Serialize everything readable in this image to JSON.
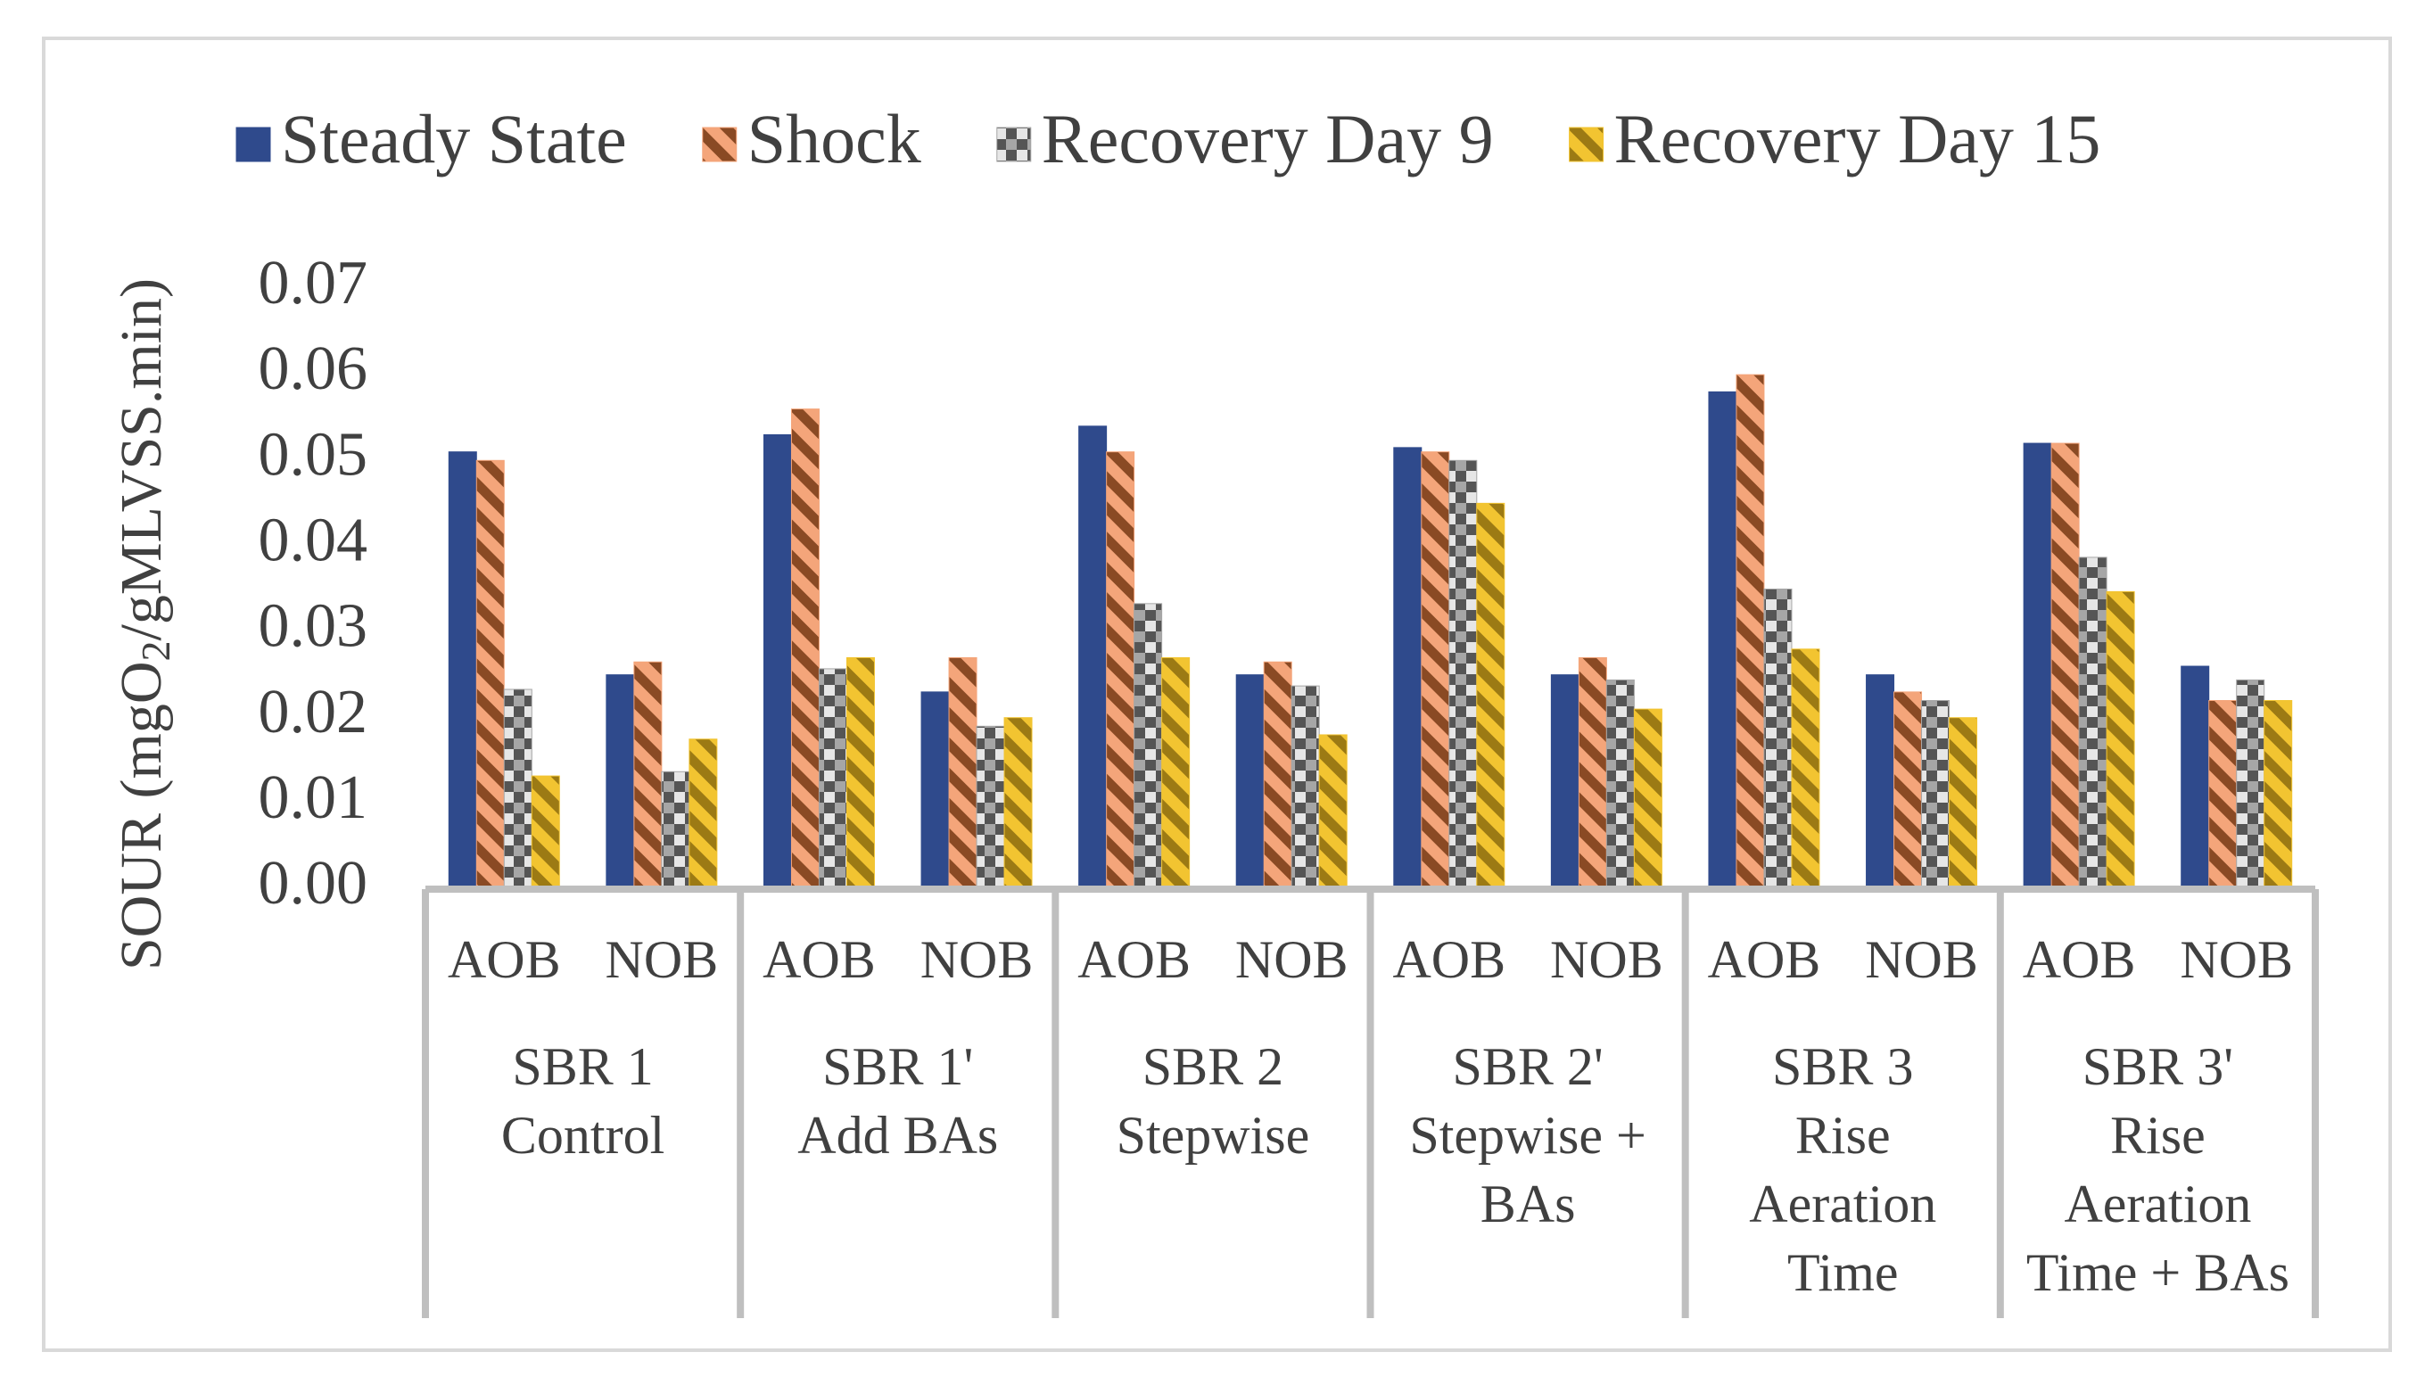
{
  "chart_data": {
    "type": "bar",
    "y_label": [
      "SOUR (mgO",
      "2",
      "/gMLVSS.min)"
    ],
    "categories": [
      "AOB",
      "NOB",
      "AOB",
      "NOB",
      "AOB",
      "NOB",
      "AOB",
      "NOB",
      "AOB",
      "NOB",
      "AOB",
      "NOB"
    ],
    "groups": [
      [
        "SBR 1",
        "Control"
      ],
      [
        "SBR 1'",
        "Add BAs"
      ],
      [
        "SBR 2",
        "Stepwise"
      ],
      [
        "SBR 2'",
        "Stepwise +",
        "BAs"
      ],
      [
        "SBR 3",
        "Rise",
        "Aeration",
        "Time"
      ],
      [
        "SBR 3'",
        "Rise",
        "Aeration",
        "Time + BAs"
      ]
    ],
    "series": [
      {
        "name": "Steady State",
        "color": "#2f4a8c",
        "pattern": "solid",
        "values": [
          0.051,
          0.025,
          0.053,
          0.023,
          0.054,
          0.025,
          0.0515,
          0.025,
          0.058,
          0.025,
          0.052,
          0.026
        ]
      },
      {
        "name": "Shock",
        "color": "#f4a57a",
        "pattern": "stripes",
        "values": [
          0.05,
          0.0265,
          0.056,
          0.027,
          0.051,
          0.0265,
          0.051,
          0.027,
          0.06,
          0.023,
          0.052,
          0.022
        ]
      },
      {
        "name": "Recovery Day 9",
        "color": "#a6a6a6",
        "pattern": "checker",
        "values": [
          0.0233,
          0.0137,
          0.0257,
          0.019,
          0.0333,
          0.0237,
          0.05,
          0.0244,
          0.035,
          0.022,
          0.0387,
          0.0244
        ]
      },
      {
        "name": "Recovery Day 15",
        "color": "#f2c431",
        "pattern": "stripes",
        "values": [
          0.0132,
          0.0175,
          0.027,
          0.02,
          0.027,
          0.018,
          0.045,
          0.021,
          0.028,
          0.02,
          0.0347,
          0.022
        ]
      }
    ],
    "ylim": [
      0,
      0.07
    ],
    "yticks": [
      {
        "value": 0,
        "label": "0.00"
      },
      0.01,
      0.02,
      0.03,
      0.04,
      0.05,
      0.06,
      0.07
    ],
    "grid": false,
    "legend": "top"
  }
}
